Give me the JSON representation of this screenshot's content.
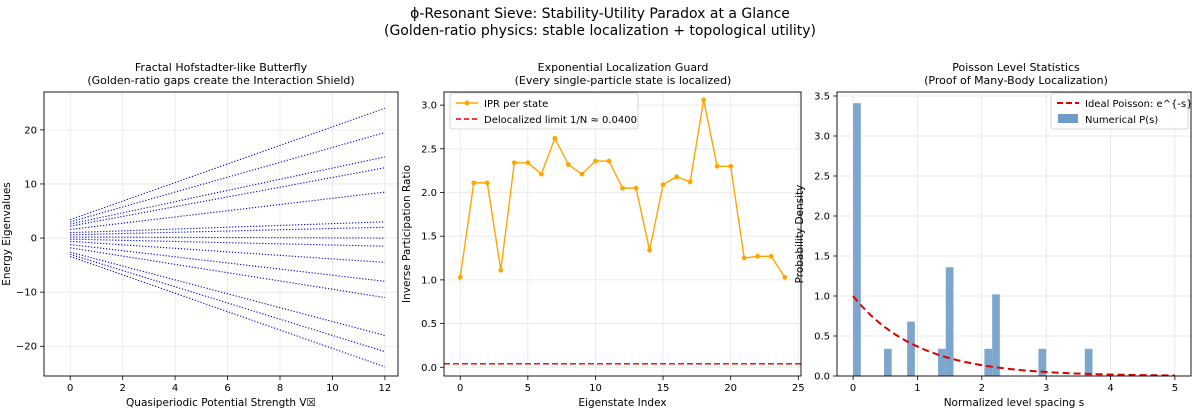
{
  "figure": {
    "title_line1": "ϕ-Resonant Sieve: Stability-Utility Paradox at a Glance",
    "title_line2": "(Golden-ratio physics: stable localization + topological utility)"
  },
  "chart_data": [
    {
      "type": "line",
      "title_line1": "Fractal Hofstadter-like Butterfly",
      "title_line2": "(Golden-ratio gaps create the Interaction Shield)",
      "xlabel": "Quasiperiodic Potential Strength V☒",
      "ylabel": "Energy Eigenvalues",
      "xlim": [
        -1,
        12.5
      ],
      "ylim": [
        -25.5,
        27
      ],
      "xticks": [
        0,
        2,
        4,
        6,
        8,
        10,
        12
      ],
      "yticks": [
        -20,
        -10,
        0,
        10,
        20
      ],
      "grid": true,
      "line_color": "#0000cc",
      "line_style": "dotted",
      "series": [
        {
          "x": [
            0,
            12
          ],
          "y": [
            3.4,
            24
          ]
        },
        {
          "x": [
            0,
            12
          ],
          "y": [
            3.0,
            19.5
          ]
        },
        {
          "x": [
            0,
            12
          ],
          "y": [
            2.6,
            15
          ]
        },
        {
          "x": [
            0,
            12
          ],
          "y": [
            2.2,
            13
          ]
        },
        {
          "x": [
            0,
            12
          ],
          "y": [
            1.6,
            8.5
          ]
        },
        {
          "x": [
            0,
            12
          ],
          "y": [
            1.0,
            3
          ]
        },
        {
          "x": [
            0,
            12
          ],
          "y": [
            0.6,
            2
          ]
        },
        {
          "x": [
            0,
            12
          ],
          "y": [
            0.2,
            0
          ]
        },
        {
          "x": [
            0,
            12
          ],
          "y": [
            -0.2,
            -1.5
          ]
        },
        {
          "x": [
            0,
            12
          ],
          "y": [
            -0.6,
            -4.5
          ]
        },
        {
          "x": [
            0,
            12
          ],
          "y": [
            -1.2,
            -8
          ]
        },
        {
          "x": [
            0,
            12
          ],
          "y": [
            -1.8,
            -11
          ]
        },
        {
          "x": [
            0,
            12
          ],
          "y": [
            -2.6,
            -18
          ]
        },
        {
          "x": [
            0,
            12
          ],
          "y": [
            -3.0,
            -21
          ]
        },
        {
          "x": [
            0,
            12
          ],
          "y": [
            -3.4,
            -23.8
          ]
        }
      ]
    },
    {
      "type": "line",
      "title_line1": "Exponential Localization Guard",
      "title_line2": "(Every single-particle state is localized)",
      "xlabel": "Eigenstate Index",
      "ylabel": "Inverse Participation Ratio",
      "xlim": [
        -1.2,
        25.2
      ],
      "ylim": [
        -0.1,
        3.15
      ],
      "xticks": [
        0,
        5,
        10,
        15,
        20,
        25
      ],
      "yticks": [
        0.0,
        0.5,
        1.0,
        1.5,
        2.0,
        2.5,
        3.0
      ],
      "grid": true,
      "legend_position": "top-left",
      "series": [
        {
          "name": "IPR per state",
          "color": "#ffa500",
          "x": [
            0,
            1,
            2,
            3,
            4,
            5,
            6,
            7,
            8,
            9,
            10,
            11,
            12,
            13,
            14,
            15,
            16,
            17,
            18,
            19,
            20,
            21,
            22,
            23,
            24
          ],
          "y": [
            1.03,
            2.11,
            2.11,
            1.11,
            2.34,
            2.34,
            2.21,
            2.62,
            2.32,
            2.21,
            2.36,
            2.36,
            2.05,
            2.05,
            1.34,
            2.09,
            2.18,
            2.12,
            3.06,
            2.3,
            2.3,
            1.25,
            1.27,
            1.27,
            1.03
          ]
        },
        {
          "name": "Delocalized limit 1/N ≈ 0.0400",
          "color": "#dd0000",
          "style": "dashed",
          "y": 0.04
        }
      ]
    },
    {
      "type": "bar",
      "title_line1": "Poisson Level Statistics",
      "title_line2": "(Proof of Many-Body Localization)",
      "xlabel": "Normalized level spacing s",
      "ylabel": "Probability Density",
      "xlim": [
        -0.25,
        5.25
      ],
      "ylim": [
        0,
        3.55
      ],
      "xticks": [
        0,
        1,
        2,
        3,
        4,
        5
      ],
      "yticks": [
        0.0,
        0.5,
        1.0,
        1.5,
        2.0,
        2.5,
        3.0,
        3.5
      ],
      "grid": true,
      "legend_position": "top-right",
      "bin_width": 0.12,
      "bar_color": "#6f9cc6",
      "curve_color": "#dd0000",
      "series": [
        {
          "name": "Ideal Poisson: e^{-s}",
          "style": "dashed"
        },
        {
          "name": "Numerical P(s)",
          "bins_left": [
            0.0,
            0.48,
            0.84,
            1.32,
            1.44,
            2.04,
            2.16,
            2.88,
            3.6
          ],
          "values": [
            3.41,
            0.34,
            0.68,
            0.34,
            1.36,
            0.34,
            1.02,
            0.34,
            0.34
          ]
        }
      ]
    }
  ]
}
